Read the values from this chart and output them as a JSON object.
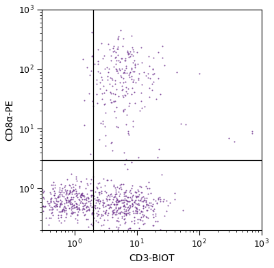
{
  "xlabel": "CD3-BIOT",
  "ylabel": "CD8α-PE",
  "dot_color": "#6B2D8B",
  "xlim_log": [
    0.3,
    1000
  ],
  "ylim_log": [
    0.2,
    1000
  ],
  "xline": 2.0,
  "yline": 3.0,
  "xticks": [
    1,
    10,
    100,
    1000
  ],
  "yticks": [
    1,
    10,
    100,
    1000
  ],
  "background_color": "#ffffff",
  "dot_size": 2.0,
  "dot_alpha": 0.85,
  "line_color": "#000000",
  "clusters": {
    "upper_right_main": {
      "x_center": 6.0,
      "y_center": 100,
      "x_spread": 0.28,
      "y_spread": 0.3,
      "n": 150
    },
    "upper_right_tail": {
      "x_center": 7.0,
      "y_center": 40,
      "x_spread": 0.3,
      "y_spread": 0.35,
      "n": 60
    },
    "lower_left": {
      "x_center": 0.8,
      "y_center": 0.6,
      "x_spread": 0.22,
      "y_spread": 0.18,
      "n": 280
    },
    "lower_right": {
      "x_center": 6.0,
      "y_center": 0.55,
      "x_spread": 0.32,
      "y_spread": 0.2,
      "n": 420
    },
    "sparse_trail": {
      "x_center": 5.0,
      "y_center": 12,
      "x_spread": 0.3,
      "y_spread": 0.5,
      "n": 25
    },
    "sparse_far": {
      "x_center": 80,
      "y_center": 9,
      "x_spread": 0.35,
      "y_spread": 0.25,
      "n": 4
    }
  }
}
